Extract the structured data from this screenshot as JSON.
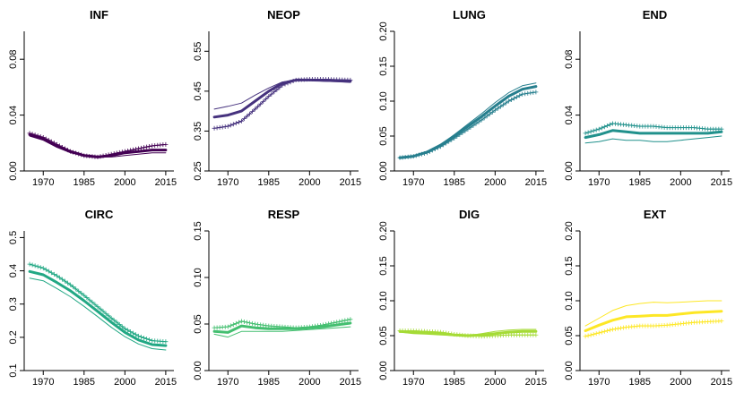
{
  "chart_data": [
    {
      "type": "line",
      "title": "INF",
      "color": "#440154",
      "x": [
        1965,
        1970,
        1975,
        1980,
        1985,
        1990,
        1995,
        2000,
        2005,
        2010,
        2015
      ],
      "xticks": [
        1970,
        1985,
        2000,
        2015
      ],
      "ylim": [
        0,
        0.1
      ],
      "yticks": [
        0.0,
        0.04,
        0.08
      ],
      "ytick_labels": [
        "0.00",
        "0.04",
        "0.08"
      ],
      "series": [
        {
          "style": "thick",
          "values": [
            0.026,
            0.023,
            0.018,
            0.014,
            0.011,
            0.01,
            0.011,
            0.013,
            0.014,
            0.015,
            0.015
          ]
        },
        {
          "style": "cross",
          "values": [
            0.027,
            0.024,
            0.019,
            0.014,
            0.011,
            0.01,
            0.012,
            0.014,
            0.016,
            0.018,
            0.019
          ]
        },
        {
          "style": "thin",
          "values": [
            0.025,
            0.022,
            0.017,
            0.013,
            0.011,
            0.01,
            0.01,
            0.011,
            0.012,
            0.013,
            0.013
          ]
        }
      ]
    },
    {
      "type": "line",
      "title": "NEOP",
      "color": "#46327e",
      "x": [
        1965,
        1970,
        1975,
        1980,
        1985,
        1990,
        1995,
        2000,
        2005,
        2010,
        2015
      ],
      "xticks": [
        1970,
        1985,
        2000,
        2015
      ],
      "ylim": [
        0.25,
        0.6
      ],
      "yticks": [
        0.25,
        0.35,
        0.45,
        0.55
      ],
      "ytick_labels": [
        "0.25",
        "0.35",
        "0.45",
        "0.55"
      ],
      "series": [
        {
          "style": "thick",
          "values": [
            0.385,
            0.39,
            0.4,
            0.425,
            0.45,
            0.47,
            0.478,
            0.478,
            0.477,
            0.476,
            0.475
          ]
        },
        {
          "style": "cross",
          "values": [
            0.357,
            0.362,
            0.375,
            0.405,
            0.437,
            0.465,
            0.478,
            0.48,
            0.48,
            0.479,
            0.478
          ]
        },
        {
          "style": "thin",
          "values": [
            0.405,
            0.412,
            0.42,
            0.44,
            0.458,
            0.473,
            0.478,
            0.477,
            0.475,
            0.474,
            0.472
          ]
        }
      ]
    },
    {
      "type": "line",
      "title": "LUNG",
      "color": "#277f8e",
      "x": [
        1965,
        1970,
        1975,
        1980,
        1985,
        1990,
        1995,
        2000,
        2005,
        2010,
        2015
      ],
      "xticks": [
        1970,
        1985,
        2000,
        2015
      ],
      "ylim": [
        0,
        0.2
      ],
      "yticks": [
        0.0,
        0.05,
        0.1,
        0.15,
        0.2
      ],
      "ytick_labels": [
        "0.00",
        "0.05",
        "0.10",
        "0.15",
        "0.20"
      ],
      "series": [
        {
          "style": "thick",
          "values": [
            0.019,
            0.021,
            0.027,
            0.037,
            0.05,
            0.064,
            0.078,
            0.093,
            0.107,
            0.117,
            0.121
          ]
        },
        {
          "style": "cross",
          "values": [
            0.019,
            0.021,
            0.026,
            0.035,
            0.047,
            0.06,
            0.073,
            0.087,
            0.1,
            0.11,
            0.113
          ]
        },
        {
          "style": "thin",
          "values": [
            0.019,
            0.021,
            0.028,
            0.038,
            0.052,
            0.067,
            0.082,
            0.098,
            0.112,
            0.122,
            0.126
          ]
        }
      ]
    },
    {
      "type": "line",
      "title": "END",
      "color": "#21918c",
      "x": [
        1965,
        1970,
        1975,
        1980,
        1985,
        1990,
        1995,
        2000,
        2005,
        2010,
        2015
      ],
      "xticks": [
        1970,
        1985,
        2000,
        2015
      ],
      "ylim": [
        0,
        0.1
      ],
      "yticks": [
        0.0,
        0.04,
        0.08
      ],
      "ytick_labels": [
        "0.00",
        "0.04",
        "0.08"
      ],
      "series": [
        {
          "style": "thick",
          "values": [
            0.024,
            0.026,
            0.029,
            0.028,
            0.027,
            0.027,
            0.027,
            0.027,
            0.027,
            0.027,
            0.028
          ]
        },
        {
          "style": "cross",
          "values": [
            0.027,
            0.03,
            0.034,
            0.033,
            0.032,
            0.032,
            0.031,
            0.031,
            0.031,
            0.03,
            0.03
          ]
        },
        {
          "style": "thin",
          "values": [
            0.02,
            0.021,
            0.023,
            0.022,
            0.022,
            0.021,
            0.021,
            0.022,
            0.023,
            0.024,
            0.025
          ]
        }
      ]
    },
    {
      "type": "line",
      "title": "CIRC",
      "color": "#22a884",
      "x": [
        1965,
        1970,
        1975,
        1980,
        1985,
        1990,
        1995,
        2000,
        2005,
        2010,
        2015
      ],
      "xticks": [
        1970,
        1985,
        2000,
        2015
      ],
      "ylim": [
        0.1,
        0.52
      ],
      "yticks": [
        0.1,
        0.2,
        0.3,
        0.4,
        0.5
      ],
      "ytick_labels": [
        "0.1",
        "0.2",
        "0.3",
        "0.4",
        "0.5"
      ],
      "series": [
        {
          "style": "thick",
          "values": [
            0.398,
            0.388,
            0.365,
            0.34,
            0.31,
            0.278,
            0.245,
            0.215,
            0.192,
            0.178,
            0.175
          ]
        },
        {
          "style": "cross",
          "values": [
            0.42,
            0.408,
            0.385,
            0.358,
            0.326,
            0.292,
            0.258,
            0.226,
            0.204,
            0.19,
            0.187
          ]
        },
        {
          "style": "thin",
          "values": [
            0.378,
            0.37,
            0.347,
            0.322,
            0.293,
            0.262,
            0.23,
            0.202,
            0.18,
            0.166,
            0.162
          ]
        }
      ]
    },
    {
      "type": "line",
      "title": "RESP",
      "color": "#44bf70",
      "x": [
        1965,
        1970,
        1975,
        1980,
        1985,
        1990,
        1995,
        2000,
        2005,
        2010,
        2015
      ],
      "xticks": [
        1970,
        1985,
        2000,
        2015
      ],
      "ylim": [
        0,
        0.15
      ],
      "yticks": [
        0.0,
        0.05,
        0.1,
        0.15
      ],
      "ytick_labels": [
        "0.00",
        "0.05",
        "0.10",
        "0.15"
      ],
      "series": [
        {
          "style": "thick",
          "values": [
            0.042,
            0.041,
            0.048,
            0.046,
            0.045,
            0.045,
            0.045,
            0.046,
            0.047,
            0.049,
            0.051
          ]
        },
        {
          "style": "cross",
          "values": [
            0.046,
            0.047,
            0.053,
            0.05,
            0.048,
            0.047,
            0.046,
            0.047,
            0.049,
            0.052,
            0.055
          ]
        },
        {
          "style": "thin",
          "values": [
            0.039,
            0.036,
            0.042,
            0.042,
            0.042,
            0.042,
            0.043,
            0.044,
            0.045,
            0.046,
            0.047
          ]
        }
      ]
    },
    {
      "type": "line",
      "title": "DIG",
      "color": "#a5db36",
      "x": [
        1965,
        1970,
        1975,
        1980,
        1985,
        1990,
        1995,
        2000,
        2005,
        2010,
        2015
      ],
      "xticks": [
        1970,
        1985,
        2000,
        2015
      ],
      "ylim": [
        0,
        0.2
      ],
      "yticks": [
        0.0,
        0.05,
        0.1,
        0.15,
        0.2
      ],
      "ytick_labels": [
        "0.00",
        "0.05",
        "0.10",
        "0.15",
        "0.20"
      ],
      "series": [
        {
          "style": "thick",
          "values": [
            0.056,
            0.055,
            0.054,
            0.053,
            0.051,
            0.05,
            0.051,
            0.053,
            0.055,
            0.056,
            0.056
          ]
        },
        {
          "style": "cross",
          "values": [
            0.057,
            0.057,
            0.056,
            0.055,
            0.052,
            0.05,
            0.049,
            0.05,
            0.051,
            0.051,
            0.051
          ]
        },
        {
          "style": "thin",
          "values": [
            0.055,
            0.053,
            0.052,
            0.051,
            0.05,
            0.05,
            0.053,
            0.056,
            0.058,
            0.059,
            0.059
          ]
        }
      ]
    },
    {
      "type": "line",
      "title": "EXT",
      "color": "#fde725",
      "x": [
        1965,
        1970,
        1975,
        1980,
        1985,
        1990,
        1995,
        2000,
        2005,
        2010,
        2015
      ],
      "xticks": [
        1970,
        1985,
        2000,
        2015
      ],
      "ylim": [
        0,
        0.2
      ],
      "yticks": [
        0.0,
        0.05,
        0.1,
        0.15,
        0.2
      ],
      "ytick_labels": [
        "0.00",
        "0.05",
        "0.10",
        "0.15",
        "0.20"
      ],
      "series": [
        {
          "style": "thick",
          "values": [
            0.057,
            0.065,
            0.072,
            0.077,
            0.078,
            0.079,
            0.079,
            0.081,
            0.083,
            0.084,
            0.085
          ]
        },
        {
          "style": "cross",
          "values": [
            0.049,
            0.054,
            0.059,
            0.062,
            0.064,
            0.064,
            0.065,
            0.067,
            0.069,
            0.07,
            0.071
          ]
        },
        {
          "style": "thin",
          "values": [
            0.064,
            0.075,
            0.086,
            0.093,
            0.096,
            0.098,
            0.097,
            0.098,
            0.099,
            0.1,
            0.1
          ]
        }
      ]
    }
  ]
}
